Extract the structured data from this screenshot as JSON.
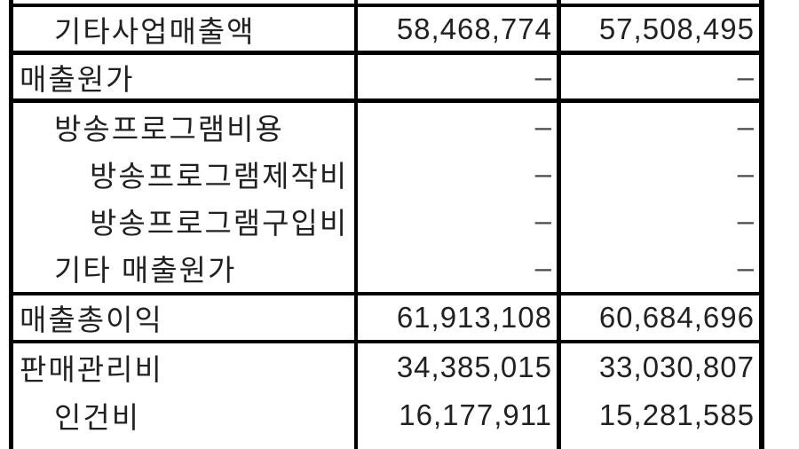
{
  "page": {
    "background_color": "#ffffff",
    "text_color": "#212121",
    "border_color": "#000000",
    "language": "ko",
    "kind": "financial-statement-table-fragment"
  },
  "table": {
    "value_columns": 2,
    "rows": [
      {
        "label": "기타사업매출액",
        "indent": 1,
        "values": [
          "58,468,774",
          "57,508,495"
        ]
      },
      {
        "label": "매출원가",
        "indent": 0,
        "values": [
          "–",
          "–"
        ]
      },
      {
        "label": "방송프로그램비용",
        "indent": 1,
        "values": [
          "–",
          "–"
        ]
      },
      {
        "label": "방송프로그램제작비",
        "indent": 2,
        "values": [
          "–",
          "–"
        ]
      },
      {
        "label": "방송프로그램구입비",
        "indent": 2,
        "values": [
          "–",
          "–"
        ]
      },
      {
        "label": "기타 매출원가",
        "indent": 1,
        "values": [
          "–",
          "–"
        ]
      },
      {
        "label": "매출총이익",
        "indent": 0,
        "values": [
          "61,913,108",
          "60,684,696"
        ]
      },
      {
        "label": "판매관리비",
        "indent": 0,
        "values": [
          "34,385,015",
          "33,030,807"
        ]
      },
      {
        "label": "인건비",
        "indent": 1,
        "values": [
          "16,177,911",
          "15,281,585"
        ]
      }
    ]
  }
}
